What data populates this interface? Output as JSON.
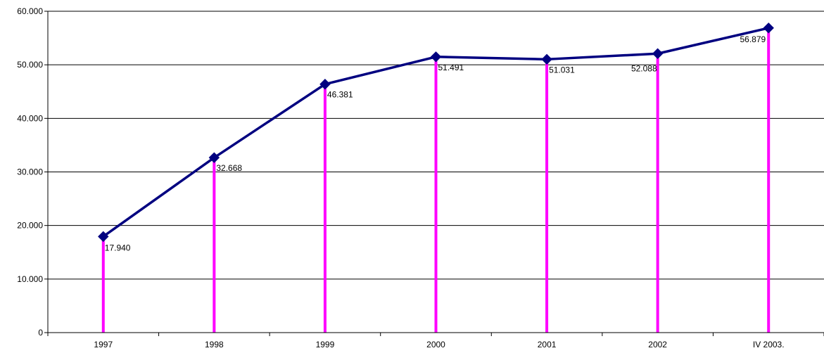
{
  "chart_data": {
    "type": "line",
    "categories": [
      "1997",
      "1998",
      "1999",
      "2000",
      "2001",
      "2002",
      "IV  2003."
    ],
    "series": [
      {
        "values": [
          17940,
          32668,
          46381,
          51491,
          51031,
          52088,
          56879
        ],
        "value_labels": [
          "17.940",
          "32.668",
          "46.381",
          "51.491",
          "51.031",
          "52.088",
          "56.879"
        ]
      }
    ],
    "y_ticks": [
      0,
      10000,
      20000,
      30000,
      40000,
      50000,
      60000
    ],
    "y_tick_labels": [
      "0",
      "10.000",
      "20.000",
      "30.000",
      "40.000",
      "50.000",
      "60.000"
    ],
    "ylim": [
      0,
      60000
    ],
    "grid": true,
    "drop_lines": true,
    "title": "",
    "xlabel": "",
    "ylabel": "",
    "colors": {
      "line": "#000080",
      "marker": "#000080",
      "drop_line": "#ff00ff",
      "grid": "#000000",
      "axis": "#000000"
    }
  }
}
